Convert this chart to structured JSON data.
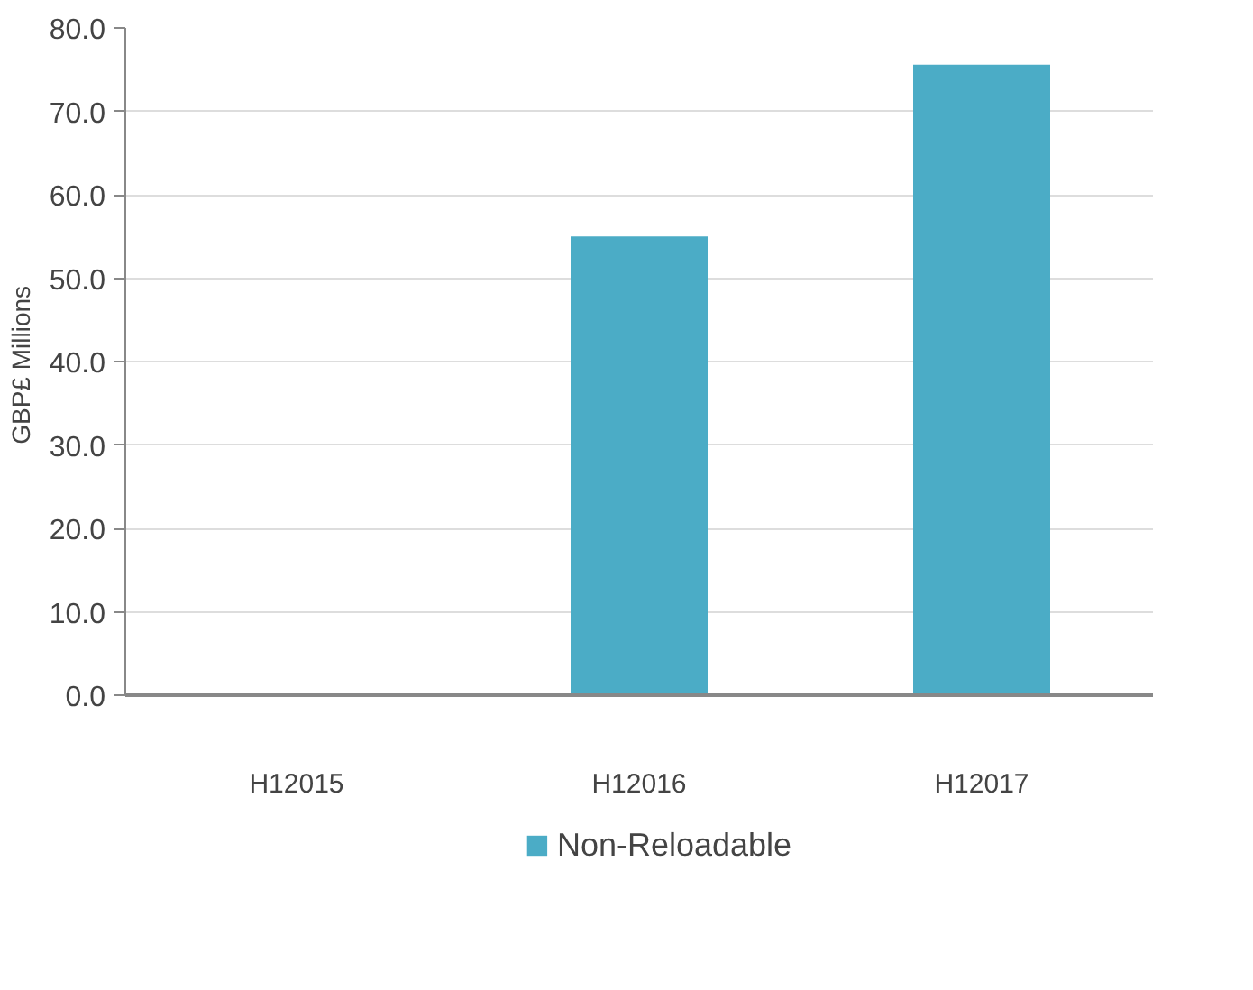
{
  "chart_data": {
    "type": "bar",
    "ylabel": "GBP£  Millions",
    "categories": [
      "H12015",
      "H12016",
      "H12017"
    ],
    "series": [
      {
        "name": "Non-Reloadable",
        "color": "#4bacc6",
        "values": [
          null,
          55.0,
          75.6
        ]
      }
    ],
    "ylim": [
      0,
      80
    ],
    "yticks": [
      {
        "value": 0,
        "label": "0.0"
      },
      {
        "value": 10,
        "label": "10.0"
      },
      {
        "value": 20,
        "label": "20.0"
      },
      {
        "value": 30,
        "label": "30.0"
      },
      {
        "value": 40,
        "label": "40.0"
      },
      {
        "value": 50,
        "label": "50.0"
      },
      {
        "value": 60,
        "label": "60.0"
      },
      {
        "value": 70,
        "label": "70.0"
      },
      {
        "value": 80,
        "label": "80.0"
      }
    ],
    "grid": "y",
    "legend": "bottom"
  }
}
